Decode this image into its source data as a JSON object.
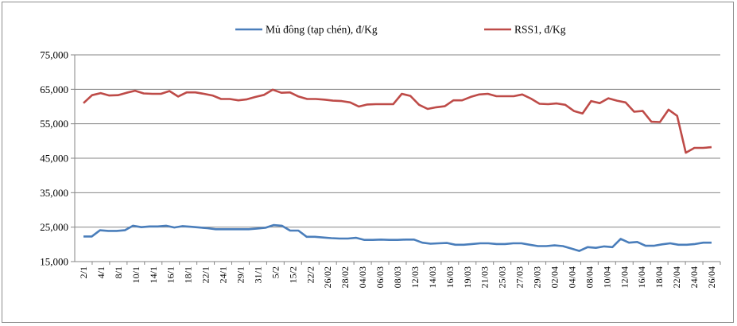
{
  "chart_data": {
    "type": "line",
    "title": "",
    "xlabel": "",
    "ylabel": "",
    "ylim": [
      15000,
      75000
    ],
    "yticks": [
      "15,000",
      "25,000",
      "35,000",
      "45,000",
      "55,000",
      "65,000",
      "75,000"
    ],
    "grid": "horizontal",
    "legend_position": "top",
    "x_tick_labels": [
      "2/1",
      "4/1",
      "8/1",
      "10/1",
      "14/1",
      "16/1",
      "18/1",
      "22/1",
      "24/1",
      "29/1",
      "31/1",
      "5/2",
      "15/2",
      "22/2",
      "26/02",
      "28/02",
      "04/03",
      "06/03",
      "08/03",
      "12/03",
      "14/03",
      "16/03",
      "19/03",
      "21/03",
      "25/03",
      "27/03",
      "29/03",
      "02/04",
      "04/04",
      "08/04",
      "10/04",
      "12/04",
      "16/04",
      "18/04",
      "22/04",
      "24/04",
      "26/04"
    ],
    "series": [
      {
        "name": "Mủ đông (tạp chén), đ/Kg",
        "color": "#4a7ebb",
        "values": [
          22300,
          22300,
          24100,
          23900,
          23900,
          24100,
          25400,
          25000,
          25200,
          25200,
          25400,
          24900,
          25300,
          25100,
          24900,
          24700,
          24400,
          24400,
          24400,
          24400,
          24400,
          24600,
          24800,
          25600,
          25400,
          24000,
          24000,
          22200,
          22200,
          22000,
          21800,
          21700,
          21700,
          21900,
          21300,
          21300,
          21400,
          21300,
          21300,
          21400,
          21400,
          20500,
          20200,
          20300,
          20400,
          19900,
          19900,
          20100,
          20300,
          20300,
          20100,
          20100,
          20300,
          20300,
          19900,
          19500,
          19500,
          19700,
          19500,
          18800,
          18100,
          19200,
          19000,
          19400,
          19200,
          21600,
          20500,
          20700,
          19600,
          19600,
          20000,
          20300,
          19900,
          19900,
          20100,
          20500,
          20500
        ]
      },
      {
        "name": "RSS1, đ/Kg",
        "color": "#be4b48",
        "values": [
          61000,
          63300,
          63900,
          63200,
          63300,
          64000,
          64600,
          63800,
          63700,
          63700,
          64500,
          62900,
          64100,
          64100,
          63700,
          63200,
          62200,
          62200,
          61800,
          62100,
          62800,
          63400,
          64900,
          64000,
          64100,
          62900,
          62200,
          62200,
          62000,
          61700,
          61600,
          61200,
          60000,
          60600,
          60700,
          60700,
          60700,
          63700,
          63100,
          60500,
          59300,
          59800,
          60100,
          61800,
          61800,
          62800,
          63500,
          63700,
          63000,
          63000,
          63000,
          63500,
          62300,
          60800,
          60700,
          60900,
          60500,
          58700,
          58000,
          61600,
          61000,
          62400,
          61700,
          61200,
          58500,
          58700,
          55600,
          55500,
          59100,
          57300,
          46600,
          48000,
          48000,
          48200
        ]
      }
    ]
  }
}
